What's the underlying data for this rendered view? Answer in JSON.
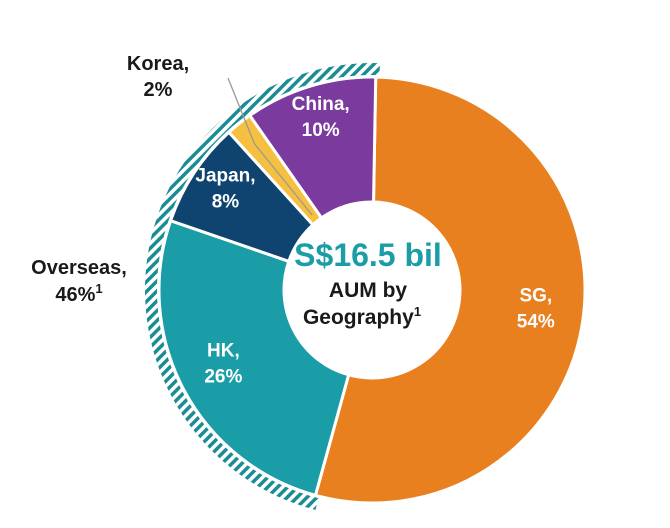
{
  "chart_data": {
    "type": "pie",
    "subtype": "donut",
    "categories": [
      "SG",
      "HK",
      "Japan",
      "Korea",
      "China"
    ],
    "values": [
      54,
      26,
      8,
      2,
      10
    ],
    "units": "%",
    "slice_labels": [
      {
        "name": "SG,",
        "value": "54%"
      },
      {
        "name": "HK,",
        "value": "26%"
      },
      {
        "name": "Japan,",
        "value": "8%"
      },
      {
        "name": "Korea,",
        "value": "2%"
      },
      {
        "name": "China,",
        "value": "10%"
      }
    ],
    "colors": [
      "#E8801F",
      "#1A9DA6",
      "#0F4470",
      "#F5C040",
      "#7A3A9E"
    ],
    "center": {
      "total": "S$16.5 bil",
      "line1": "AUM by",
      "line2": "Geography",
      "footnote": "1"
    },
    "group_bracket": {
      "label": "Overseas,",
      "value": "46%",
      "footnote": "1",
      "members": [
        "HK",
        "Japan",
        "Korea",
        "China"
      ]
    },
    "accent_color": "#1A9DA6",
    "bracket_stripe_color": "#1A8C95",
    "legend": "none"
  }
}
